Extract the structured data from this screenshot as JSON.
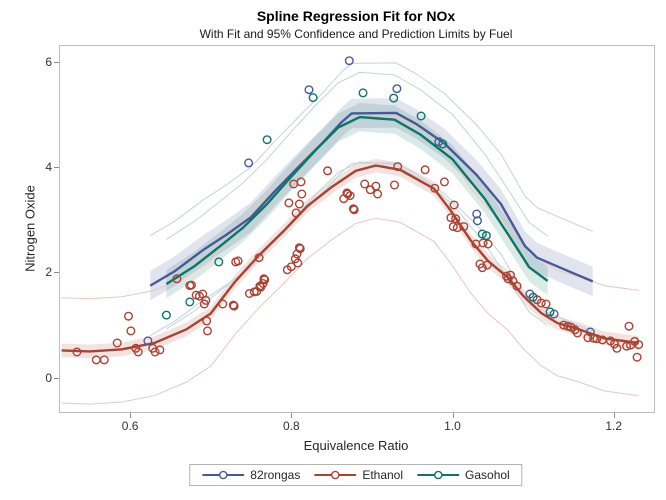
{
  "figure": {
    "title": "Spline Regression Fit for NOx",
    "subtitle": "With Fit and 95% Confidence and Prediction Limits by Fuel"
  },
  "chart_data": {
    "type": "scatter",
    "title": "Spline Regression Fit for NOx",
    "subtitle": "With Fit and 95% Confidence and Prediction Limits by Fuel",
    "xlabel": "Equivalence Ratio",
    "ylabel": "Nitrogen Oxide",
    "xlim": [
      0.513,
      1.25
    ],
    "ylim": [
      -0.65,
      6.3
    ],
    "x_ticks": [
      [
        0.6,
        "0.6"
      ],
      [
        0.8,
        "0.8"
      ],
      [
        1.0,
        "1.0"
      ],
      [
        1.2,
        "1.2"
      ]
    ],
    "y_ticks": [
      [
        0,
        "0"
      ],
      [
        2,
        "2"
      ],
      [
        4,
        "4"
      ],
      [
        6,
        "6"
      ]
    ],
    "grid": false,
    "legend_position": "bottom",
    "band_meaning": "95% confidence limits (shaded) and 95% prediction limits (thin lines)",
    "series": [
      {
        "name": "82rongas",
        "color": "#475A96",
        "band_color": "rgba(68,86,148,0.16)",
        "pl_color": "#c8cfe2",
        "ci_halfwidth": 0.28,
        "pl_halfwidth": 0.95,
        "fit": [
          [
            0.625,
            1.75
          ],
          [
            0.655,
            2.02
          ],
          [
            0.69,
            2.42
          ],
          [
            0.72,
            2.72
          ],
          [
            0.75,
            3.05
          ],
          [
            0.78,
            3.55
          ],
          [
            0.81,
            4.02
          ],
          [
            0.84,
            4.48
          ],
          [
            0.862,
            4.85
          ],
          [
            0.875,
            5.02
          ],
          [
            0.93,
            5.03
          ],
          [
            0.955,
            4.82
          ],
          [
            0.99,
            4.45
          ],
          [
            1.03,
            3.85
          ],
          [
            1.06,
            3.3
          ],
          [
            1.09,
            2.5
          ],
          [
            1.105,
            2.28
          ],
          [
            1.14,
            2.05
          ],
          [
            1.174,
            1.83
          ]
        ],
        "points": [
          [
            0.622,
            0.7
          ],
          [
            0.747,
            4.08
          ],
          [
            0.822,
            5.47
          ],
          [
            0.872,
            6.02
          ],
          [
            0.931,
            5.49
          ],
          [
            0.983,
            4.48
          ],
          [
            1.03,
            3.11
          ],
          [
            1.031,
            2.98
          ],
          [
            1.096,
            1.59
          ],
          [
            1.126,
            1.21
          ],
          [
            1.171,
            0.87
          ]
        ]
      },
      {
        "name": "Ethanol",
        "color": "#A84334",
        "band_color": "rgba(162,58,46,0.14)",
        "pl_color": "#eac5bf",
        "ci_halfwidth": 0.13,
        "pl_halfwidth": 1.0,
        "fit": [
          [
            0.515,
            0.52
          ],
          [
            0.55,
            0.5
          ],
          [
            0.59,
            0.54
          ],
          [
            0.63,
            0.66
          ],
          [
            0.67,
            0.92
          ],
          [
            0.7,
            1.22
          ],
          [
            0.73,
            1.82
          ],
          [
            0.76,
            2.33
          ],
          [
            0.79,
            2.78
          ],
          [
            0.82,
            3.26
          ],
          [
            0.85,
            3.62
          ],
          [
            0.88,
            3.93
          ],
          [
            0.905,
            4.03
          ],
          [
            0.935,
            3.95
          ],
          [
            0.977,
            3.59
          ],
          [
            0.998,
            3.17
          ],
          [
            1.023,
            2.6
          ],
          [
            1.044,
            2.22
          ],
          [
            1.069,
            1.9
          ],
          [
            1.088,
            1.55
          ],
          [
            1.11,
            1.23
          ],
          [
            1.13,
            1.04
          ],
          [
            1.155,
            0.93
          ],
          [
            1.188,
            0.75
          ],
          [
            1.231,
            0.66
          ]
        ],
        "points": [
          [
            0.534,
            0.49
          ],
          [
            0.558,
            0.34
          ],
          [
            0.568,
            0.34
          ],
          [
            0.584,
            0.66
          ],
          [
            0.598,
            1.17
          ],
          [
            0.601,
            0.89
          ],
          [
            0.607,
            0.56
          ],
          [
            0.61,
            0.49
          ],
          [
            0.628,
            0.56
          ],
          [
            0.631,
            0.49
          ],
          [
            0.637,
            0.53
          ],
          [
            0.658,
            1.88
          ],
          [
            0.674,
            1.75
          ],
          [
            0.676,
            1.76
          ],
          [
            0.682,
            1.57
          ],
          [
            0.686,
            1.55
          ],
          [
            0.69,
            1.59
          ],
          [
            0.692,
            1.4
          ],
          [
            0.694,
            1.47
          ],
          [
            0.695,
            1.08
          ],
          [
            0.696,
            0.89
          ],
          [
            0.715,
            1.4
          ],
          [
            0.728,
            1.38
          ],
          [
            0.731,
            2.2
          ],
          [
            0.734,
            2.22
          ],
          [
            0.729,
            1.36
          ],
          [
            0.748,
            1.6
          ],
          [
            0.754,
            1.63
          ],
          [
            0.757,
            1.64
          ],
          [
            0.761,
            1.74
          ],
          [
            0.762,
            1.72
          ],
          [
            0.765,
            1.79
          ],
          [
            0.766,
            1.88
          ],
          [
            0.767,
            1.86
          ],
          [
            0.76,
            2.28
          ],
          [
            0.795,
            2.05
          ],
          [
            0.797,
            3.32
          ],
          [
            0.8,
            2.11
          ],
          [
            0.803,
            3.68
          ],
          [
            0.805,
            2.26
          ],
          [
            0.806,
            3.13
          ],
          [
            0.807,
            2.35
          ],
          [
            0.808,
            2.18
          ],
          [
            0.81,
            2.47
          ],
          [
            0.81,
            3.3
          ],
          [
            0.811,
            2.45
          ],
          [
            0.812,
            3.72
          ],
          [
            0.813,
            3.49
          ],
          [
            0.845,
            3.93
          ],
          [
            0.865,
            3.4
          ],
          [
            0.869,
            3.51
          ],
          [
            0.87,
            3.49
          ],
          [
            0.873,
            3.46
          ],
          [
            0.877,
            3.21
          ],
          [
            0.878,
            3.19
          ],
          [
            0.891,
            3.68
          ],
          [
            0.898,
            3.57
          ],
          [
            0.905,
            3.64
          ],
          [
            0.907,
            3.49
          ],
          [
            0.928,
            3.66
          ],
          [
            0.932,
            4.01
          ],
          [
            0.966,
            3.95
          ],
          [
            0.978,
            3.6
          ],
          [
            0.99,
            3.72
          ],
          [
            0.998,
            3.04
          ],
          [
            1.002,
            3.28
          ],
          [
            1.004,
            3.02
          ],
          [
            1.001,
            2.87
          ],
          [
            1.006,
            2.85
          ],
          [
            1.014,
            2.87
          ],
          [
            1.029,
            2.54
          ],
          [
            1.034,
            2.16
          ],
          [
            1.037,
            2.09
          ],
          [
            1.038,
            2.56
          ],
          [
            1.043,
            2.14
          ],
          [
            1.044,
            2.54
          ],
          [
            1.067,
            1.93
          ],
          [
            1.069,
            1.88
          ],
          [
            1.072,
            1.95
          ],
          [
            1.075,
            1.84
          ],
          [
            1.08,
            1.74
          ],
          [
            1.105,
            1.48
          ],
          [
            1.11,
            1.42
          ],
          [
            1.116,
            1.4
          ],
          [
            1.138,
            1.0
          ],
          [
            1.143,
            0.98
          ],
          [
            1.147,
            0.96
          ],
          [
            1.152,
            0.91
          ],
          [
            1.155,
            0.85
          ],
          [
            1.168,
            0.76
          ],
          [
            1.175,
            0.75
          ],
          [
            1.179,
            0.74
          ],
          [
            1.186,
            0.72
          ],
          [
            1.196,
            0.7
          ],
          [
            1.201,
            0.64
          ],
          [
            1.204,
            0.56
          ],
          [
            1.216,
            0.6
          ],
          [
            1.219,
            0.98
          ],
          [
            1.221,
            0.62
          ],
          [
            1.226,
            0.69
          ],
          [
            1.229,
            0.39
          ],
          [
            1.231,
            0.63
          ]
        ]
      },
      {
        "name": "Gasohol",
        "color": "#0E7467",
        "band_color": "rgba(14,110,95,0.15)",
        "pl_color": "#bcd8d2",
        "ci_halfwidth": 0.27,
        "pl_halfwidth": 0.85,
        "fit": [
          [
            0.645,
            1.78
          ],
          [
            0.68,
            2.12
          ],
          [
            0.71,
            2.48
          ],
          [
            0.74,
            2.85
          ],
          [
            0.77,
            3.3
          ],
          [
            0.8,
            3.82
          ],
          [
            0.83,
            4.32
          ],
          [
            0.858,
            4.75
          ],
          [
            0.885,
            4.95
          ],
          [
            0.928,
            4.9
          ],
          [
            0.96,
            4.62
          ],
          [
            1.0,
            4.15
          ],
          [
            1.04,
            3.4
          ],
          [
            1.07,
            2.7
          ],
          [
            1.095,
            2.1
          ],
          [
            1.118,
            1.84
          ]
        ],
        "points": [
          [
            0.645,
            1.19
          ],
          [
            0.674,
            1.44
          ],
          [
            0.71,
            2.2
          ],
          [
            0.77,
            4.52
          ],
          [
            0.827,
            5.32
          ],
          [
            0.889,
            5.41
          ],
          [
            0.927,
            5.31
          ],
          [
            0.961,
            4.97
          ],
          [
            0.988,
            4.44
          ],
          [
            1.037,
            2.73
          ],
          [
            1.042,
            2.7
          ],
          [
            1.1,
            1.53
          ],
          [
            1.121,
            1.25
          ]
        ]
      }
    ]
  }
}
